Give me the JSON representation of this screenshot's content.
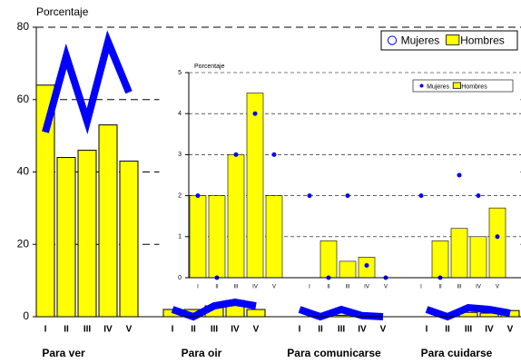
{
  "chart_data": [
    {
      "type": "bar",
      "ylabel": "Porcentaje",
      "ylim": [
        0,
        80
      ],
      "yticks": [
        0,
        20,
        40,
        60,
        80
      ],
      "grid": true,
      "legend": "upper right",
      "groups": [
        "Para ver",
        "Para oir",
        "Para comunicarse",
        "Para cuidarse"
      ],
      "categories": [
        "I",
        "II",
        "III",
        "IV",
        "V",
        "I",
        "II",
        "III",
        "IV",
        "V",
        "I",
        "II",
        "III",
        "IV",
        "V",
        "I",
        "II",
        "III",
        "IV",
        "V"
      ],
      "series": [
        {
          "name": "Mujeres",
          "color": "#0000ff",
          "type": "line",
          "values": [
            51,
            72,
            54,
            76,
            62,
            2,
            0,
            3,
            4,
            3,
            2,
            0,
            2,
            0.3,
            0,
            2,
            0,
            2.5,
            2,
            1
          ]
        },
        {
          "name": "Hombres",
          "color": "#ffff00",
          "type": "bar",
          "values": [
            64,
            44,
            46,
            53,
            43,
            2,
            2,
            3,
            4.5,
            2,
            0,
            0.9,
            0.4,
            0.5,
            0,
            0,
            0.9,
            1.2,
            1,
            1.7
          ]
        }
      ]
    },
    {
      "type": "bar",
      "ylabel": "Porcentaje",
      "ylim": [
        0,
        5
      ],
      "yticks": [
        0,
        1,
        2,
        3,
        4,
        5
      ],
      "grid": true,
      "legend": "upper right",
      "categories": [
        "I",
        "II",
        "III",
        "IV",
        "V",
        "I",
        "II",
        "III",
        "IV",
        "V",
        "I",
        "II",
        "III",
        "IV",
        "V"
      ],
      "series": [
        {
          "name": "Mujeres",
          "color": "#0000ff",
          "type": "scatter",
          "values": [
            2,
            0,
            3,
            4,
            3,
            2,
            0,
            2,
            0.3,
            0,
            2,
            0,
            2.5,
            2,
            1
          ]
        },
        {
          "name": "Hombres",
          "color": "#ffff00",
          "type": "bar",
          "values": [
            2,
            2,
            3,
            4.5,
            2,
            0,
            0.9,
            0.4,
            0.5,
            0,
            0,
            0.9,
            1.2,
            1,
            1.7
          ]
        }
      ]
    }
  ]
}
